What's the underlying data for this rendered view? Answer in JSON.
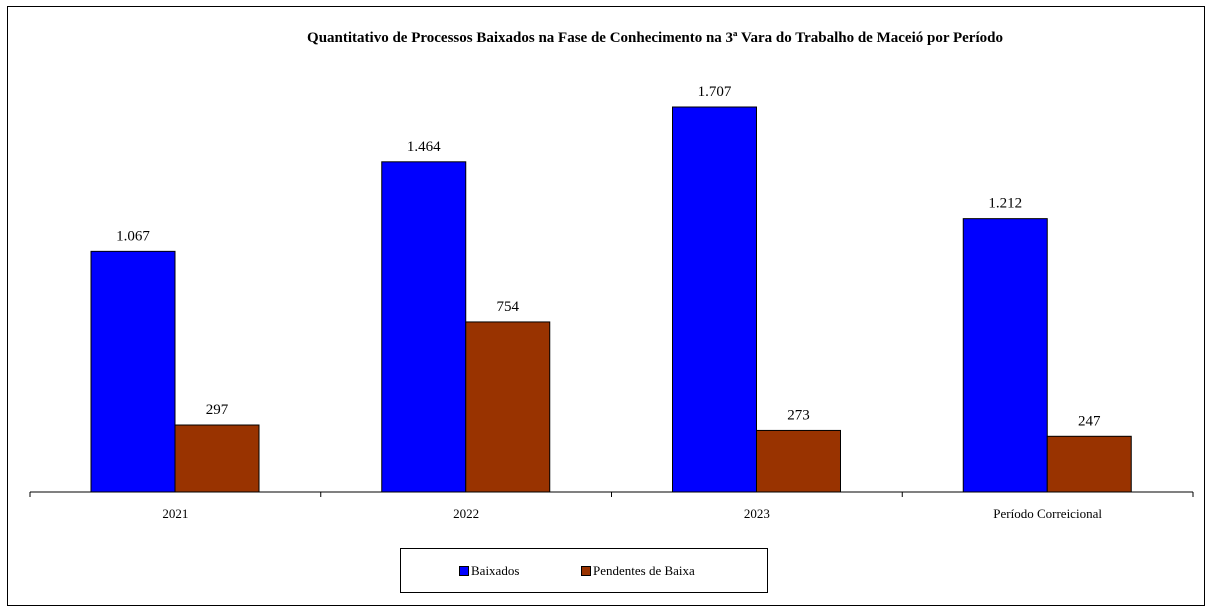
{
  "chart_data": {
    "type": "bar",
    "title": "Quantitativo de Processos Baixados na Fase de Conhecimento na 3ª Vara do Trabalho de Maceió por Período",
    "categories": [
      "2021",
      "2022",
      "2023",
      "Período Correicional"
    ],
    "series": [
      {
        "name": "Baixados",
        "values": [
          1067,
          1464,
          1707,
          1212
        ],
        "labels": [
          "1.067",
          "1.464",
          "1.707",
          "1.212"
        ],
        "color": "#0000FF"
      },
      {
        "name": "Pendentes de Baixa",
        "values": [
          297,
          754,
          273,
          247
        ],
        "labels": [
          "297",
          "754",
          "273",
          "247"
        ],
        "color": "#993300"
      }
    ],
    "ylim": [
      0,
      1707
    ],
    "grid": false,
    "legend_position": "bottom"
  }
}
